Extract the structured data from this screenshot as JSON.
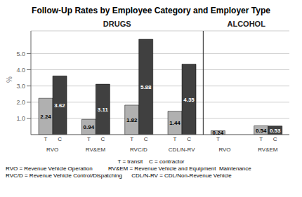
{
  "chart_data": {
    "type": "bar",
    "title": "Follow-Up Rates by Employee Category and Employer Type",
    "ylabel": "%",
    "categories": [
      "RVO",
      "RV&EM",
      "RVC/D",
      "CDL/N-RV",
      "RVO",
      "RV&EM"
    ],
    "sections": [
      "DRUGS",
      "DRUGS",
      "DRUGS",
      "DRUGS",
      "ALCOHOL",
      "ALCOHOL"
    ],
    "series": [
      {
        "name": "T",
        "color": "#b0b0b0",
        "values": [
          2.24,
          0.94,
          1.82,
          1.44,
          0.24,
          0.54
        ]
      },
      {
        "name": "C",
        "color": "#404040",
        "values": [
          3.62,
          3.11,
          5.88,
          4.35,
          0,
          0.53
        ]
      }
    ],
    "ylim": [
      0,
      6.4
    ],
    "yticks": [
      {
        "value": 1.0,
        "label": "1.0"
      },
      {
        "value": 2.0,
        "label": "2.0"
      },
      {
        "value": 3.0,
        "label": "3.0"
      },
      {
        "value": 4.0,
        "label": "4.0"
      },
      {
        "value": 5.0,
        "label": "5.0"
      }
    ],
    "grid": true,
    "data_labels": true,
    "footnotes": [
      "T = transit    C = contractor",
      "RVO = Revenue Vehicle Operation          RV&EM = Revenue Vehicle and Equipment  Maintenance",
      "RVC/D = Revenue Vehicle Control/Dispatching      CDL/N-RV = CDL/Non-Revenue Vehicle"
    ]
  }
}
